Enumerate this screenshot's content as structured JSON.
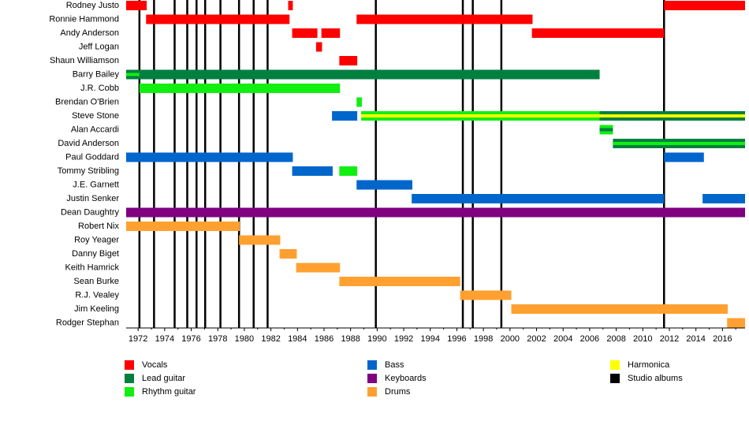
{
  "chart_data": {
    "type": "timeline",
    "roles": [
      {
        "name": "Vocals",
        "color": "#ff0000"
      },
      {
        "name": "Lead guitar",
        "color": "#007f3f"
      },
      {
        "name": "Rhythm guitar",
        "color": "#11ee11"
      },
      {
        "name": "Bass",
        "color": "#0066cc"
      },
      {
        "name": "Keyboards",
        "color": "#800080"
      },
      {
        "name": "Drums",
        "color": "#ffa030"
      },
      {
        "name": "Harmonica",
        "color": "#ffff00"
      },
      {
        "name": "Studio albums",
        "color": "#000000"
      }
    ],
    "members": [
      {
        "name": "Rodney Justo",
        "periods": [
          {
            "role": "Vocals",
            "start": 1971.1,
            "end": 1972.65
          },
          {
            "role": "Vocals",
            "start": 1983.3,
            "end": 1983.65
          },
          {
            "role": "Vocals",
            "start": 2011.6,
            "end": 2017.7
          }
        ]
      },
      {
        "name": "Ronnie Hammond",
        "periods": [
          {
            "role": "Vocals",
            "start": 1972.6,
            "end": 1983.4
          },
          {
            "role": "Vocals",
            "start": 1988.45,
            "end": 2001.7
          }
        ]
      },
      {
        "name": "Andy Anderson",
        "periods": [
          {
            "role": "Vocals",
            "start": 1983.6,
            "end": 1985.5
          },
          {
            "role": "Vocals",
            "start": 1985.8,
            "end": 1987.2
          },
          {
            "role": "Vocals",
            "start": 2001.65,
            "end": 2011.6
          }
        ]
      },
      {
        "name": "Jeff Logan",
        "periods": [
          {
            "role": "Vocals",
            "start": 1985.4,
            "end": 1985.85
          }
        ]
      },
      {
        "name": "Shaun Williamson",
        "periods": [
          {
            "role": "Vocals",
            "start": 1987.15,
            "end": 1988.5
          }
        ]
      },
      {
        "name": "Barry Bailey",
        "periods": [
          {
            "role": "Lead guitar",
            "start": 1971.1,
            "end": 2006.75
          },
          {
            "role": "Rhythm guitar",
            "start": 1971.1,
            "end": 1972.1,
            "inner": true
          }
        ]
      },
      {
        "name": "J.R. Cobb",
        "periods": [
          {
            "role": "Rhythm guitar",
            "start": 1972.1,
            "end": 1987.2
          }
        ]
      },
      {
        "name": "Brendan O'Brien",
        "periods": [
          {
            "role": "Rhythm guitar",
            "start": 1988.45,
            "end": 1988.85
          }
        ]
      },
      {
        "name": "Steve Stone",
        "periods": [
          {
            "role": "Bass",
            "start": 1986.6,
            "end": 1988.5
          },
          {
            "role": "Rhythm guitar",
            "start": 1988.8,
            "end": 2006.75
          },
          {
            "role": "Lead guitar",
            "start": 2006.75,
            "end": 2017.7
          },
          {
            "role": "Harmonica",
            "start": 1988.8,
            "end": 2017.7,
            "inner": true
          }
        ]
      },
      {
        "name": "Alan Accardi",
        "periods": [
          {
            "role": "Rhythm guitar",
            "start": 2006.75,
            "end": 2007.75
          },
          {
            "role": "Lead guitar",
            "start": 2006.75,
            "end": 2007.75,
            "inner": true
          }
        ]
      },
      {
        "name": "David Anderson",
        "periods": [
          {
            "role": "Lead guitar",
            "start": 2007.75,
            "end": 2017.7
          },
          {
            "role": "Rhythm guitar",
            "start": 2007.75,
            "end": 2017.7,
            "inner": true
          }
        ]
      },
      {
        "name": "Paul Goddard",
        "periods": [
          {
            "role": "Bass",
            "start": 1971.1,
            "end": 1983.65
          },
          {
            "role": "Bass",
            "start": 2011.6,
            "end": 2014.6
          }
        ]
      },
      {
        "name": "Tommy Stribling",
        "periods": [
          {
            "role": "Bass",
            "start": 1983.6,
            "end": 1986.65
          },
          {
            "role": "Rhythm guitar",
            "start": 1987.15,
            "end": 1988.5
          }
        ]
      },
      {
        "name": "J.E. Garnett",
        "periods": [
          {
            "role": "Bass",
            "start": 1988.45,
            "end": 1992.65
          }
        ]
      },
      {
        "name": "Justin Senker",
        "periods": [
          {
            "role": "Bass",
            "start": 1992.6,
            "end": 2011.6
          },
          {
            "role": "Bass",
            "start": 2014.5,
            "end": 2017.7
          }
        ]
      },
      {
        "name": "Dean Daughtry",
        "periods": [
          {
            "role": "Keyboards",
            "start": 1971.1,
            "end": 2017.7
          }
        ]
      },
      {
        "name": "Robert Nix",
        "periods": [
          {
            "role": "Drums",
            "start": 1971.1,
            "end": 1979.65
          }
        ]
      },
      {
        "name": "Roy Yeager",
        "periods": [
          {
            "role": "Drums",
            "start": 1979.6,
            "end": 1982.7
          }
        ]
      },
      {
        "name": "Danny Biget",
        "periods": [
          {
            "role": "Drums",
            "start": 1982.65,
            "end": 1983.95
          }
        ]
      },
      {
        "name": "Keith Hamrick",
        "periods": [
          {
            "role": "Drums",
            "start": 1983.9,
            "end": 1987.2
          }
        ]
      },
      {
        "name": "Sean Burke",
        "periods": [
          {
            "role": "Drums",
            "start": 1987.15,
            "end": 1996.25
          }
        ]
      },
      {
        "name": "R.J. Vealey",
        "periods": [
          {
            "role": "Drums",
            "start": 1996.25,
            "end": 2000.1
          }
        ]
      },
      {
        "name": "Jim Keeling",
        "periods": [
          {
            "role": "Drums",
            "start": 2000.1,
            "end": 2016.4
          }
        ]
      },
      {
        "name": "Rodger Stephan",
        "periods": [
          {
            "role": "Drums",
            "start": 2016.35,
            "end": 2017.7
          }
        ]
      }
    ],
    "albums": [
      1972.1,
      1973.2,
      1974.75,
      1975.7,
      1976.4,
      1977.05,
      1978.2,
      1979.6,
      1980.7,
      1981.75,
      1989.9,
      1996.45,
      1997.2,
      1999.35,
      2011.6
    ],
    "xlim": [
      1971.1,
      2017.7
    ],
    "xticks": [
      1972,
      1974,
      1976,
      1978,
      1980,
      1982,
      1984,
      1986,
      1988,
      1990,
      1992,
      1994,
      1996,
      1998,
      2000,
      2002,
      2004,
      2006,
      2008,
      2010,
      2012,
      2014,
      2016
    ]
  }
}
